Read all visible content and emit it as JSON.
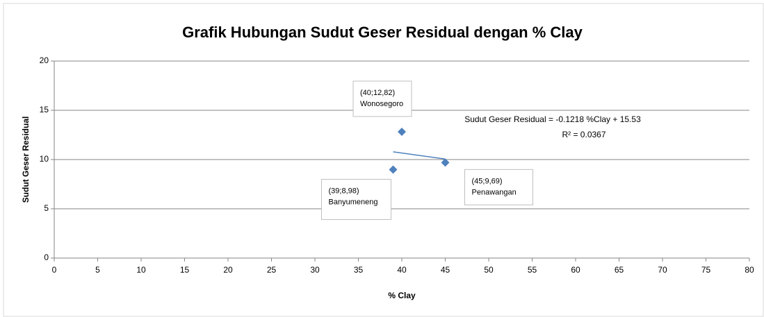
{
  "chart_data": {
    "type": "scatter",
    "title": "Grafik Hubungan Sudut Geser Residual dengan % Clay",
    "x_label": "% Clay",
    "y_label": "Sudut Geser Residual",
    "series": [
      {
        "color": "#4f81bd",
        "x": [
          40,
          39,
          45
        ],
        "values": [
          12.82,
          8.98,
          9.69
        ],
        "value_labels": [
          "(40;12,82)",
          "(39;8,98)",
          "(45;9,69)"
        ],
        "point_labels": [
          "Wonosegoro",
          "Banyumeneng",
          "Penawangan"
        ]
      }
    ],
    "trendline": {
      "color": "#4f81bd",
      "x": [
        39,
        45
      ],
      "values": [
        10.78,
        10.05
      ],
      "equation": "Sudut Geser Residual = -0.1218 %Clay + 15.53",
      "r_squared": "R² = 0.0367"
    },
    "xlim": [
      0,
      80
    ],
    "xticks": [
      0,
      5,
      10,
      15,
      20,
      25,
      30,
      35,
      40,
      45,
      50,
      55,
      60,
      65,
      70,
      75,
      80
    ],
    "ylim": [
      0,
      20
    ],
    "yticks": [
      0,
      5,
      10,
      15,
      20
    ],
    "grid": true
  }
}
